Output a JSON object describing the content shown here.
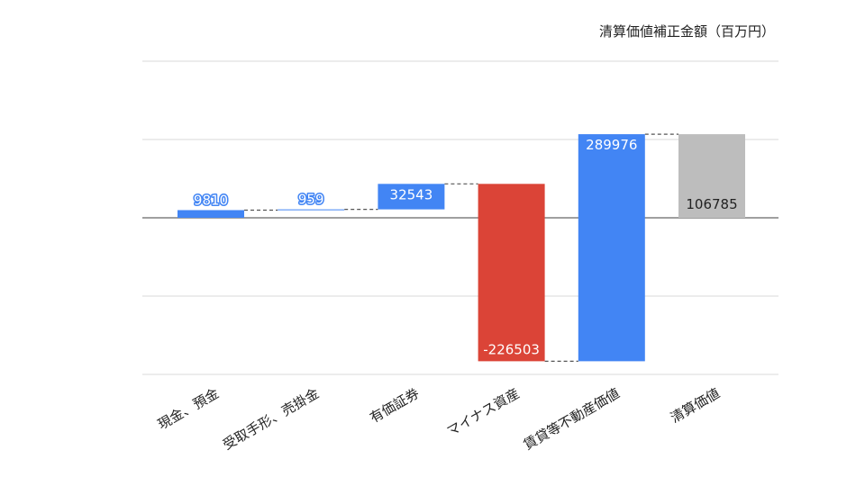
{
  "legend_title": "清算価値補正金額（百万円）",
  "chart_data": {
    "type": "bar",
    "subtype": "waterfall",
    "categories": [
      "現金、預金",
      "受取手形、売掛金",
      "有価証券",
      "マイナス資産",
      "賃貸等不動産価値",
      "清算価値"
    ],
    "values": [
      9810,
      959,
      32543,
      -226503,
      289976,
      106785
    ],
    "value_labels": [
      "9810",
      "959",
      "32543",
      "-226503",
      "289976",
      "106785"
    ],
    "bar_kinds": [
      "delta",
      "delta",
      "delta",
      "delta",
      "delta",
      "total"
    ],
    "ylim": [
      -200000,
      200000
    ],
    "y_gridlines": [
      -200000,
      -100000,
      0,
      100000,
      200000
    ],
    "grid": true,
    "legend_position": "top-right",
    "colors": {
      "increase": "#4285F4",
      "decrease": "#DB4437",
      "total": "#BDBDBD",
      "gridline": "#D9D9D9",
      "zero_line": "#666666",
      "connector": "#555555"
    }
  }
}
